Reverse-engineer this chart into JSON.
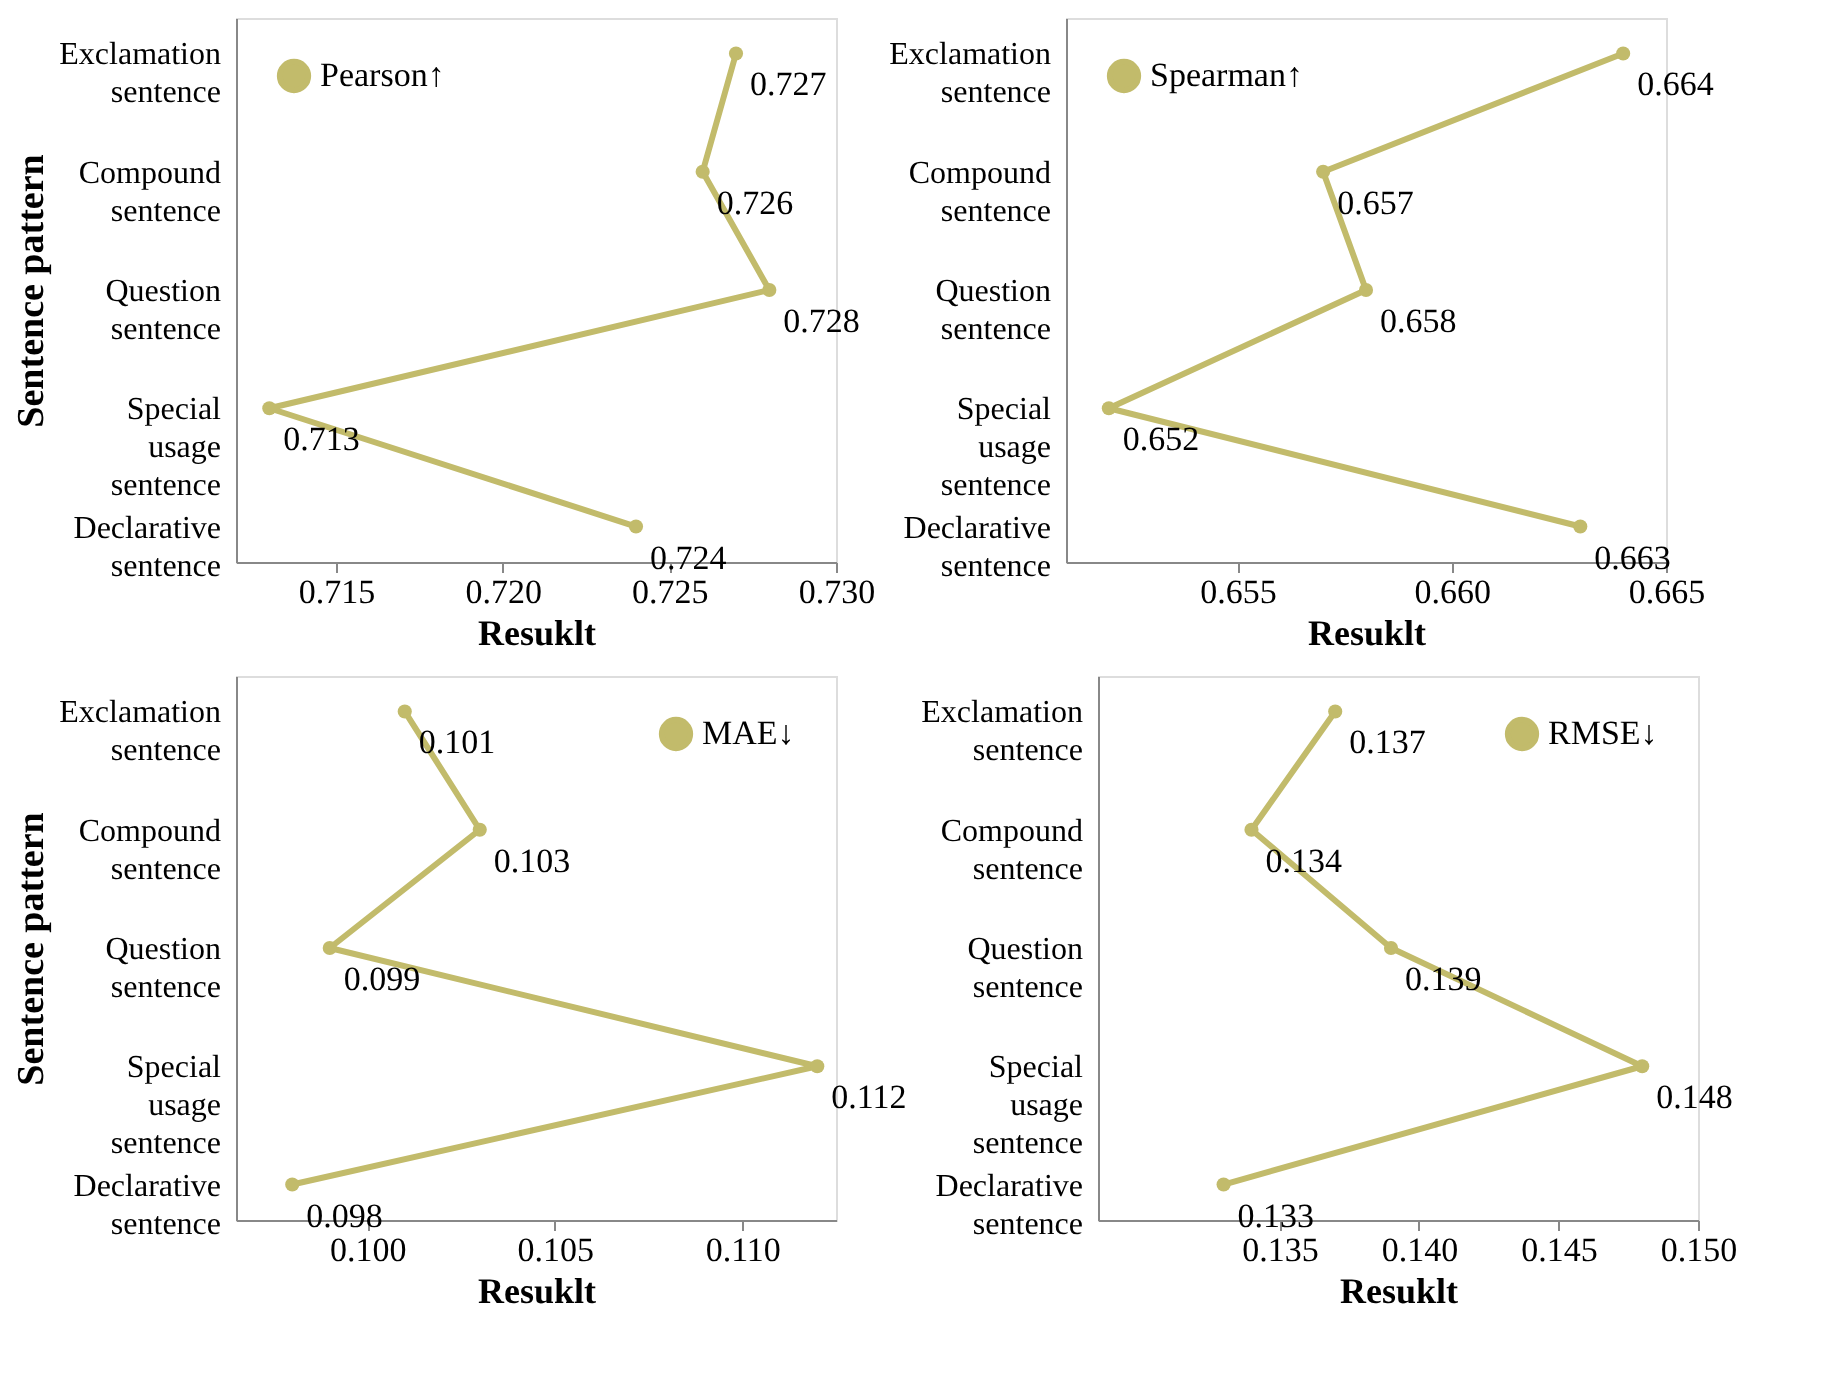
{
  "chart_data": [
    {
      "type": "line",
      "orientation": "horizontal",
      "categories": [
        "Exclamation sentence",
        "Compound sentence",
        "Question sentence",
        "Special usage sentence",
        "Declarative sentence"
      ],
      "series": [
        {
          "name": "Pearson↑",
          "color": "#c2bb6b",
          "values": [
            0.727,
            0.726,
            0.728,
            0.713,
            0.724
          ]
        }
      ],
      "xlim": [
        0.712,
        0.73
      ],
      "xticks": [
        {
          "value": 0.715,
          "label": "0.715"
        },
        {
          "value": 0.72,
          "label": "0.720"
        },
        {
          "value": 0.725,
          "label": "0.725"
        },
        {
          "value": 0.73,
          "label": "0.730"
        }
      ],
      "xlabel": "Resuklt",
      "ylabel": "Sentence pattern",
      "legend": "top left",
      "marker": "circle",
      "line_style": "solid",
      "data_labels": true,
      "grid": false
    },
    {
      "type": "line",
      "orientation": "horizontal",
      "categories": [
        "Exclamation sentence",
        "Compound sentence",
        "Question sentence",
        "Special usage sentence",
        "Declarative sentence"
      ],
      "series": [
        {
          "name": "Spearman↑",
          "color": "#c2bb6b",
          "values": [
            0.664,
            0.657,
            0.658,
            0.652,
            0.663
          ]
        }
      ],
      "xlim": [
        0.651,
        0.665
      ],
      "xticks": [
        {
          "value": 0.655,
          "label": "0.655"
        },
        {
          "value": 0.66,
          "label": "0.660"
        },
        {
          "value": 0.665,
          "label": "0.665"
        }
      ],
      "xlabel": "Resuklt",
      "legend": "top left",
      "marker": "circle",
      "line_style": "solid",
      "data_labels": true,
      "grid": false
    },
    {
      "type": "line",
      "orientation": "horizontal",
      "categories": [
        "Exclamation sentence",
        "Compound sentence",
        "Question sentence",
        "Special usage sentence",
        "Declarative sentence"
      ],
      "series": [
        {
          "name": "MAE↓",
          "color": "#c2bb6b",
          "values": [
            0.101,
            0.103,
            0.099,
            0.112,
            0.098
          ]
        }
      ],
      "xlim": [
        0.0965,
        0.1125
      ],
      "xticks": [
        {
          "value": 0.1,
          "label": "0.100"
        },
        {
          "value": 0.105,
          "label": "0.105"
        },
        {
          "value": 0.11,
          "label": "0.110"
        }
      ],
      "xlabel": "Resuklt",
      "ylabel": "Sentence pattern",
      "legend": "top right",
      "marker": "circle",
      "line_style": "solid",
      "data_labels": true,
      "grid": false
    },
    {
      "type": "line",
      "orientation": "horizontal",
      "categories": [
        "Exclamation sentence",
        "Compound sentence",
        "Question sentence",
        "Special usage sentence",
        "Declarative sentence"
      ],
      "series": [
        {
          "name": "RMSE↓",
          "color": "#c2bb6b",
          "values": [
            0.137,
            0.134,
            0.139,
            0.148,
            0.133
          ]
        }
      ],
      "xlim": [
        0.1285,
        0.15
      ],
      "xticks": [
        {
          "value": 0.135,
          "label": "0.135"
        },
        {
          "value": 0.14,
          "label": "0.140"
        },
        {
          "value": 0.145,
          "label": "0.145"
        },
        {
          "value": 0.15,
          "label": "0.150"
        }
      ],
      "xlabel": "Resuklt",
      "legend": "top right",
      "marker": "circle",
      "line_style": "solid",
      "data_labels": true,
      "grid": false
    }
  ]
}
